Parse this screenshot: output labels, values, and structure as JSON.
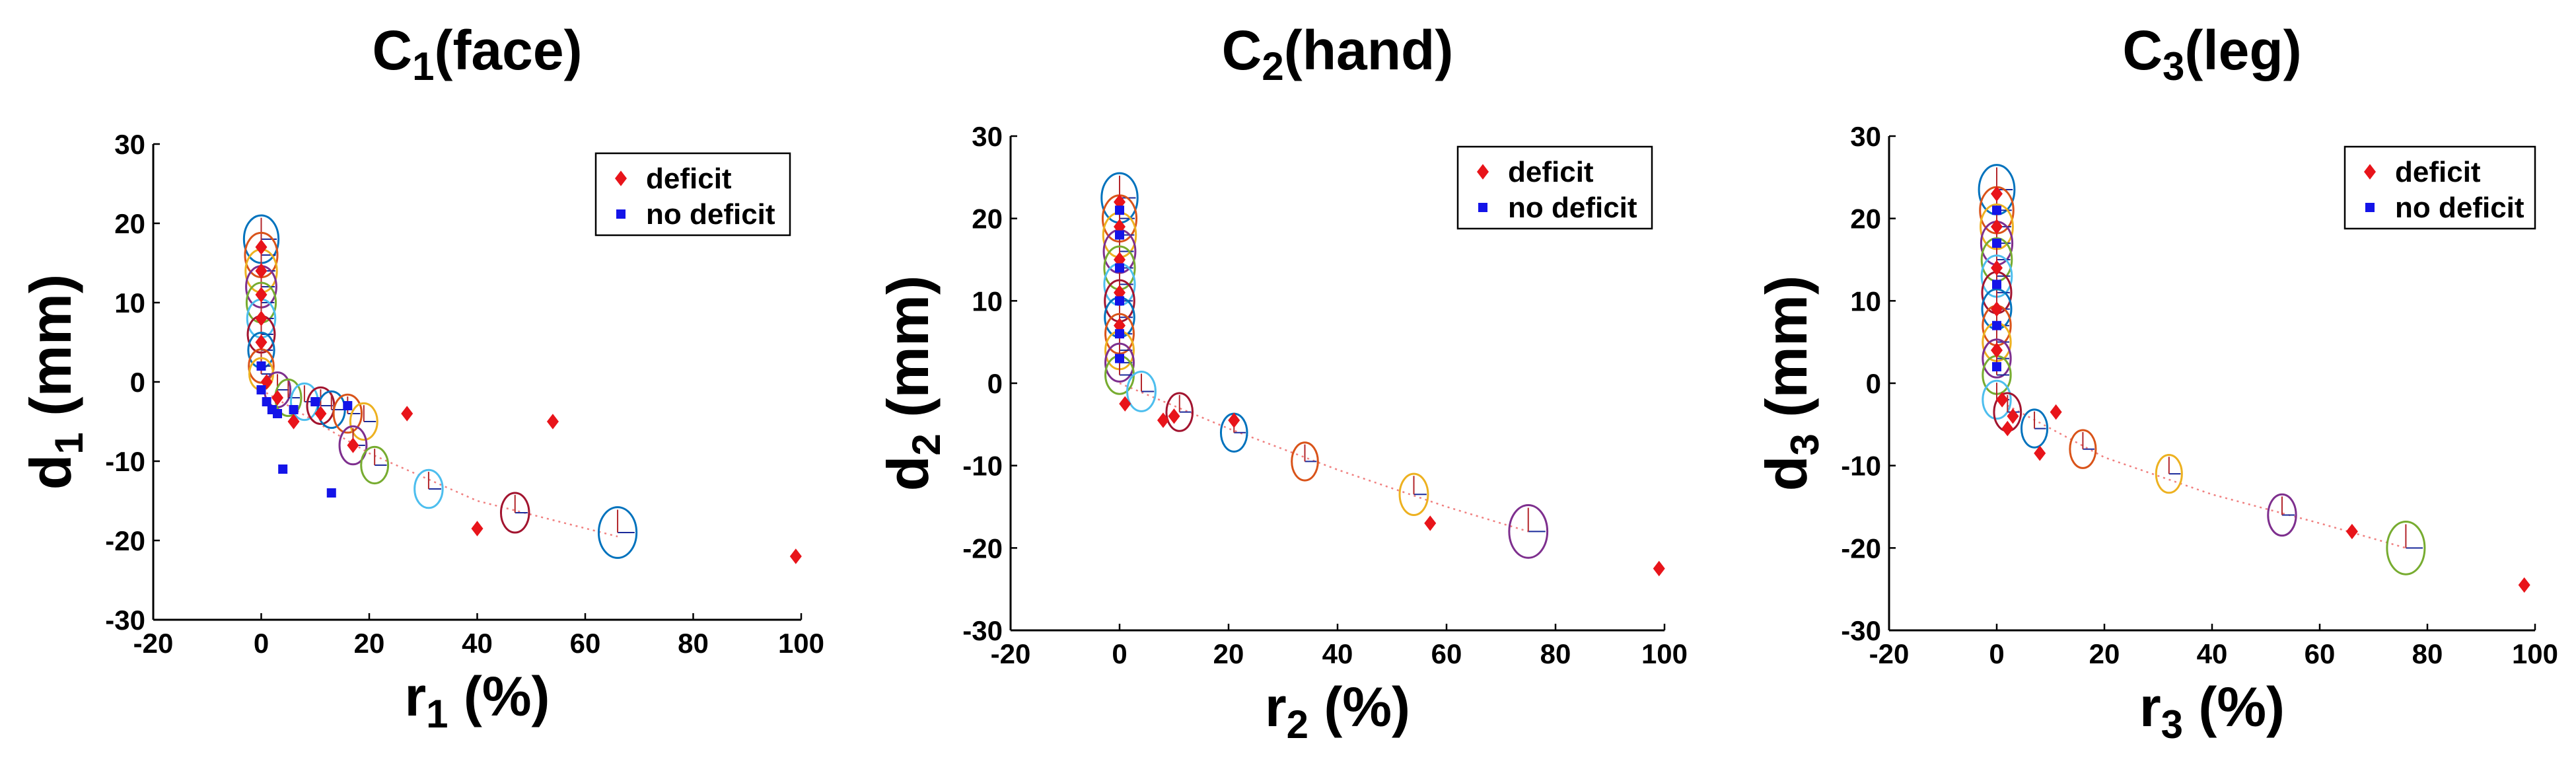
{
  "colors": {
    "deficit": "#e8141a",
    "no_deficit": "#1414e8",
    "trend": "#f08080",
    "ellipse_cycle": [
      "#0072BD",
      "#D95319",
      "#EDB120",
      "#7E2F8E",
      "#77AC30",
      "#4DBEEE",
      "#A2142F"
    ]
  },
  "legend": {
    "deficit": "deficit",
    "no_deficit": "no deficit"
  },
  "chart_data": [
    {
      "type": "scatter",
      "title": "C",
      "title_sub": "1",
      "title_suffix": "(face)",
      "ylabel": "d",
      "ylabel_sub": "1",
      "ylabel_suffix": " (mm)",
      "xlabel": "r",
      "xlabel_sub": "1",
      "xlabel_suffix": " (%)",
      "xlim": [
        -20,
        100
      ],
      "ylim": [
        -30,
        30
      ],
      "xticks": [
        -20,
        0,
        20,
        40,
        60,
        80,
        100
      ],
      "yticks": [
        -30,
        -20,
        -10,
        0,
        10,
        20,
        30
      ],
      "series": [
        {
          "name": "deficit",
          "points": [
            [
              0,
              17
            ],
            [
              0,
              14
            ],
            [
              0,
              11
            ],
            [
              0,
              8
            ],
            [
              0,
              5
            ],
            [
              1,
              0
            ],
            [
              3,
              -2
            ],
            [
              6,
              -5
            ],
            [
              11,
              -4
            ],
            [
              17,
              -8
            ],
            [
              27,
              -4
            ],
            [
              54,
              -5
            ],
            [
              40,
              -18.5
            ],
            [
              99,
              -22
            ]
          ]
        },
        {
          "name": "no deficit",
          "points": [
            [
              0,
              2
            ],
            [
              0,
              -1
            ],
            [
              1,
              -2.5
            ],
            [
              2,
              -3.5
            ],
            [
              3,
              -4
            ],
            [
              6,
              -3.5
            ],
            [
              4,
              -11
            ],
            [
              13,
              -14
            ],
            [
              16,
              -3
            ],
            [
              10,
              -2.5
            ]
          ]
        }
      ],
      "ellipses": [
        [
          0,
          18,
          3.2,
          3
        ],
        [
          0,
          16,
          3,
          2.8
        ],
        [
          0,
          14,
          2.9,
          2.7
        ],
        [
          0,
          12,
          2.8,
          2.6
        ],
        [
          0,
          10,
          2.7,
          2.5
        ],
        [
          0,
          8,
          2.6,
          2.4
        ],
        [
          0,
          6,
          2.5,
          2.3
        ],
        [
          0,
          4,
          2.4,
          2.2
        ],
        [
          0,
          2,
          2.3,
          2.1
        ],
        [
          0,
          1,
          2.2,
          2
        ],
        [
          3,
          -1,
          2.4,
          2.2
        ],
        [
          5,
          -2,
          2.4,
          2.3
        ],
        [
          8,
          -2.5,
          2.5,
          2.3
        ],
        [
          11,
          -3,
          2.5,
          2.3
        ],
        [
          13,
          -3.5,
          2.5,
          2.3
        ],
        [
          16,
          -4,
          2.6,
          2.4
        ],
        [
          19,
          -5,
          2.5,
          2.3
        ],
        [
          17,
          -8,
          2.5,
          2.4
        ],
        [
          21,
          -10.5,
          2.5,
          2.3
        ],
        [
          31,
          -13.5,
          2.6,
          2.4
        ],
        [
          47,
          -16.5,
          2.6,
          2.5
        ],
        [
          66,
          -19,
          3.5,
          3.2
        ]
      ],
      "trend": [
        [
          0,
          -1
        ],
        [
          20,
          -9
        ],
        [
          40,
          -15
        ],
        [
          66,
          -19.5
        ]
      ]
    },
    {
      "type": "scatter",
      "title": "C",
      "title_sub": "2",
      "title_suffix": "(hand)",
      "ylabel": "d",
      "ylabel_sub": "2",
      "ylabel_suffix": " (mm)",
      "xlabel": "r",
      "xlabel_sub": "2",
      "xlabel_suffix": " (%)",
      "xlim": [
        -20,
        100
      ],
      "ylim": [
        -30,
        30
      ],
      "xticks": [
        -20,
        0,
        20,
        40,
        60,
        80,
        100
      ],
      "yticks": [
        -30,
        -20,
        -10,
        0,
        10,
        20,
        30
      ],
      "series": [
        {
          "name": "deficit",
          "points": [
            [
              0,
              22
            ],
            [
              0,
              19
            ],
            [
              0,
              15
            ],
            [
              0,
              11
            ],
            [
              0,
              7
            ],
            [
              1,
              -2.5
            ],
            [
              8,
              -4.5
            ],
            [
              10,
              -4
            ],
            [
              21,
              -4.5
            ],
            [
              57,
              -17
            ],
            [
              99,
              -22.5
            ]
          ]
        },
        {
          "name": "no deficit",
          "points": [
            [
              0,
              21
            ],
            [
              0,
              18
            ],
            [
              0,
              14
            ],
            [
              0,
              10
            ],
            [
              0,
              6
            ],
            [
              0,
              3
            ]
          ]
        }
      ],
      "ellipses": [
        [
          0,
          22.5,
          3.3,
          3
        ],
        [
          0,
          20,
          3.1,
          2.8
        ],
        [
          0,
          18,
          3,
          2.7
        ],
        [
          0,
          16,
          2.9,
          2.6
        ],
        [
          0,
          14,
          2.8,
          2.6
        ],
        [
          0,
          12,
          2.8,
          2.5
        ],
        [
          0,
          10,
          2.7,
          2.5
        ],
        [
          0,
          8,
          2.7,
          2.4
        ],
        [
          0,
          6,
          2.6,
          2.4
        ],
        [
          0,
          4,
          2.6,
          2.3
        ],
        [
          0,
          2.5,
          2.6,
          2.3
        ],
        [
          0,
          1,
          2.6,
          2.3
        ],
        [
          4,
          -1,
          2.6,
          2.4
        ],
        [
          11,
          -3.5,
          2.4,
          2.3
        ],
        [
          21,
          -6,
          2.4,
          2.3
        ],
        [
          34,
          -9.5,
          2.4,
          2.3
        ],
        [
          54,
          -13.5,
          2.6,
          2.5
        ],
        [
          75,
          -18,
          3.5,
          3.2
        ]
      ],
      "trend": [
        [
          0,
          0
        ],
        [
          20,
          -5.5
        ],
        [
          40,
          -10.5
        ],
        [
          60,
          -15
        ],
        [
          75,
          -18
        ]
      ]
    },
    {
      "type": "scatter",
      "title": "C",
      "title_sub": "3",
      "title_suffix": "(leg)",
      "ylabel": "d",
      "ylabel_sub": "3",
      "ylabel_suffix": " (mm)",
      "xlabel": "r",
      "xlabel_sub": "3",
      "xlabel_suffix": " (%)",
      "xlim": [
        -20,
        100
      ],
      "ylim": [
        -30,
        30
      ],
      "xticks": [
        -20,
        0,
        20,
        40,
        60,
        80,
        100
      ],
      "yticks": [
        -30,
        -20,
        -10,
        0,
        10,
        20,
        30
      ],
      "series": [
        {
          "name": "deficit",
          "points": [
            [
              0,
              23
            ],
            [
              0,
              19
            ],
            [
              0,
              14
            ],
            [
              0,
              9
            ],
            [
              0,
              4
            ],
            [
              1,
              -2
            ],
            [
              3,
              -4
            ],
            [
              2,
              -5.5
            ],
            [
              8,
              -8.5
            ],
            [
              11,
              -3.5
            ],
            [
              66,
              -18
            ],
            [
              98,
              -24.5
            ]
          ]
        },
        {
          "name": "no deficit",
          "points": [
            [
              0,
              21
            ],
            [
              0,
              17
            ],
            [
              0,
              12
            ],
            [
              0,
              7
            ],
            [
              0,
              2
            ]
          ]
        }
      ],
      "ellipses": [
        [
          0,
          23.5,
          3.3,
          3
        ],
        [
          0,
          21,
          3.1,
          2.8
        ],
        [
          0,
          19,
          3,
          2.7
        ],
        [
          0,
          17,
          2.9,
          2.6
        ],
        [
          0,
          15,
          2.8,
          2.6
        ],
        [
          0,
          13,
          2.8,
          2.5
        ],
        [
          0,
          11,
          2.7,
          2.5
        ],
        [
          0,
          9,
          2.7,
          2.4
        ],
        [
          0,
          7,
          2.6,
          2.4
        ],
        [
          0,
          5,
          2.6,
          2.3
        ],
        [
          0,
          3,
          2.6,
          2.3
        ],
        [
          0,
          1,
          2.6,
          2.3
        ],
        [
          0,
          -2,
          2.6,
          2.3
        ],
        [
          2,
          -3.5,
          2.5,
          2.3
        ],
        [
          7,
          -5.5,
          2.4,
          2.3
        ],
        [
          16,
          -8,
          2.4,
          2.3
        ],
        [
          32,
          -11,
          2.4,
          2.3
        ],
        [
          53,
          -16,
          2.6,
          2.5
        ],
        [
          76,
          -20,
          3.5,
          3.2
        ]
      ],
      "trend": [
        [
          0,
          -2
        ],
        [
          20,
          -9
        ],
        [
          40,
          -13.5
        ],
        [
          60,
          -17
        ],
        [
          76,
          -20
        ]
      ]
    }
  ]
}
